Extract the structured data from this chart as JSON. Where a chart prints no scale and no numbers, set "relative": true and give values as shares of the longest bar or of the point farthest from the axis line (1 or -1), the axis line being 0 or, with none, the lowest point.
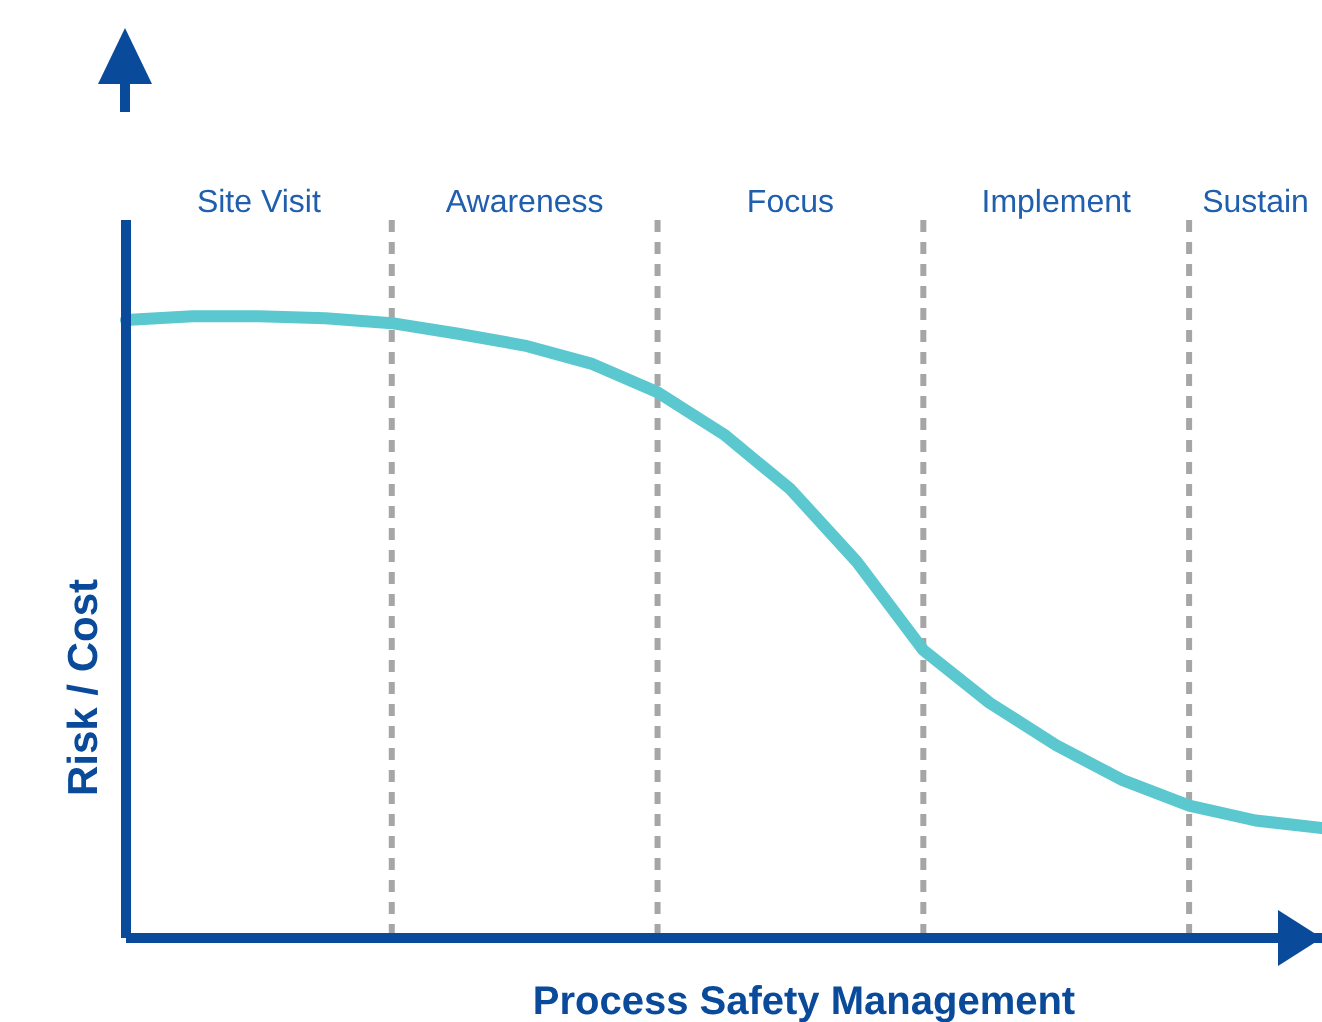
{
  "chart_data": {
    "type": "line",
    "relative": true,
    "grid": "x",
    "xlabel": "Process Safety Management",
    "ylabel": "Risk / Cost",
    "categories": [
      null,
      null,
      "Site Visit",
      null,
      null,
      null,
      "Awareness",
      null,
      null,
      null,
      "Focus",
      null,
      null,
      null,
      "Implement",
      null,
      null,
      "Sustain",
      null
    ],
    "series": [
      {
        "color": "#5bc8d0",
        "values": [
          0.994,
          1.0,
          1.0,
          0.997,
          0.989,
          0.972,
          0.953,
          0.924,
          0.878,
          0.81,
          0.722,
          0.605,
          0.463,
          0.378,
          0.31,
          0.254,
          0.213,
          0.189,
          0.177
        ]
      }
    ]
  }
}
